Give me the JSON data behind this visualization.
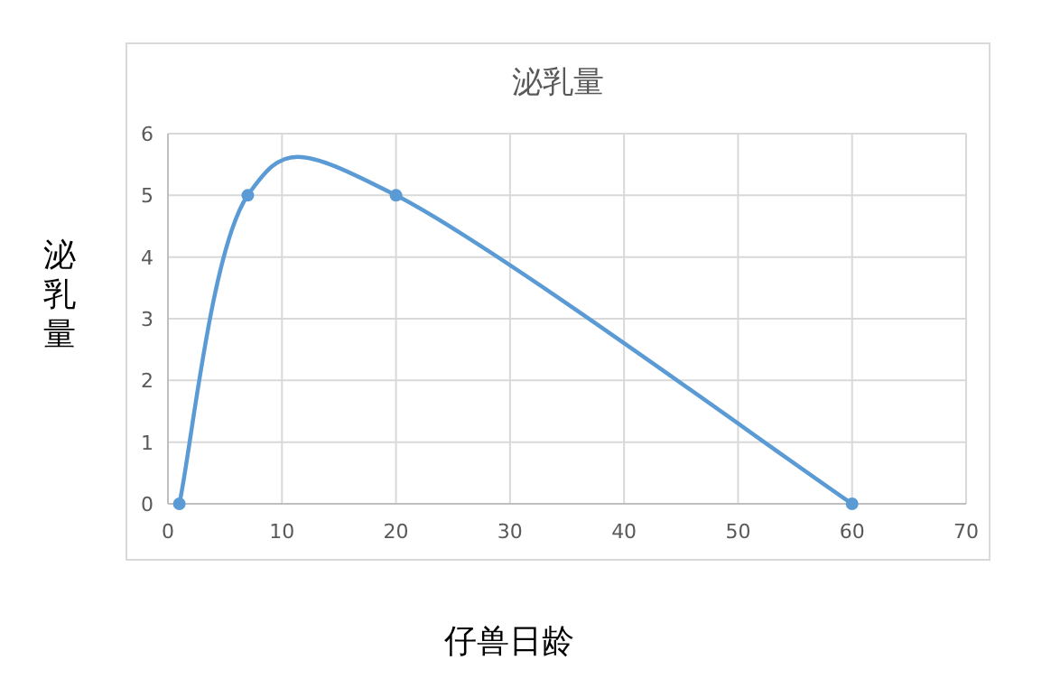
{
  "chart_data": {
    "type": "line",
    "title": "泌乳量",
    "xlabel": "仔兽日龄",
    "ylabel": "泌乳量",
    "x": [
      1,
      7,
      20,
      60
    ],
    "series": [
      {
        "color": "#5b9bd5",
        "values": [
          0,
          5,
          5,
          0
        ]
      }
    ],
    "xlim": [
      0,
      70
    ],
    "xticks": [
      0,
      10,
      20,
      30,
      40,
      50,
      60,
      70
    ],
    "ylim": [
      0,
      6
    ],
    "yticks": [
      0,
      1,
      2,
      3,
      4,
      5,
      6
    ],
    "grid": true,
    "marker": "circle",
    "line_style": "solid"
  }
}
